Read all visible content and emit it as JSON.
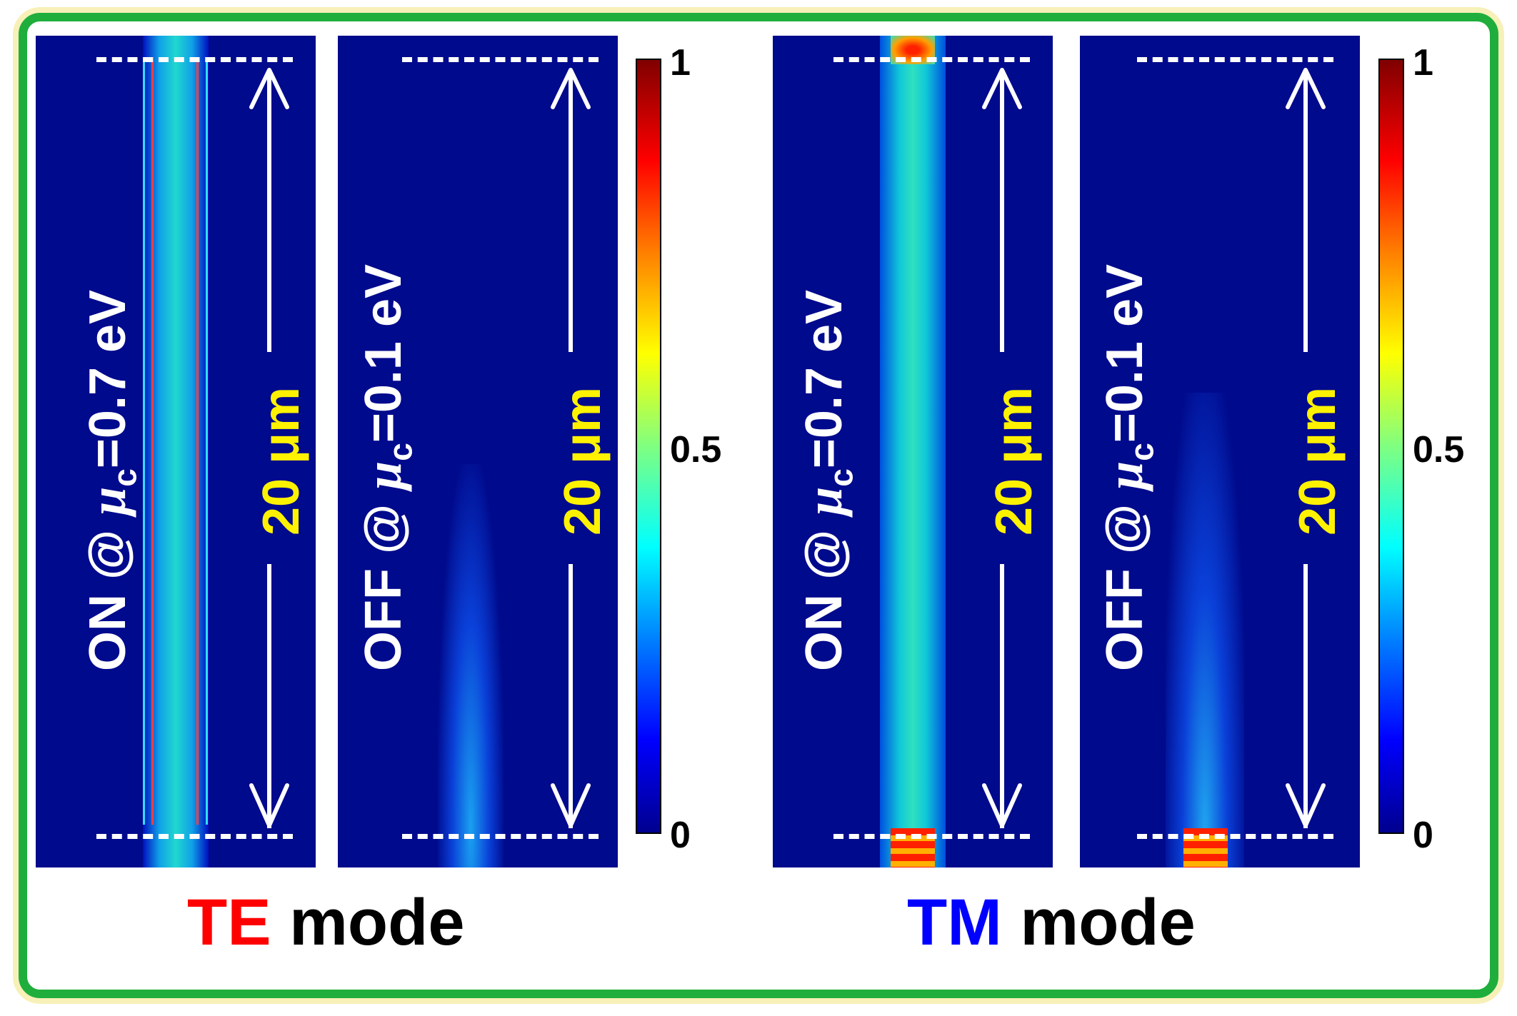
{
  "panels": [
    {
      "mode": "TE",
      "state": "ON",
      "label_prefix": "ON @ ",
      "mu": "μ",
      "mu_sub": "c",
      "label_suffix": "=0.7 eV",
      "length": "20 μm"
    },
    {
      "mode": "TE",
      "state": "OFF",
      "label_prefix": "OFF @ ",
      "mu": "μ",
      "mu_sub": "c",
      "label_suffix": "=0.1 eV",
      "length": "20 μm"
    },
    {
      "mode": "TM",
      "state": "ON",
      "label_prefix": "ON @ ",
      "mu": "μ",
      "mu_sub": "c",
      "label_suffix": "=0.7 eV",
      "length": "20 μm"
    },
    {
      "mode": "TM",
      "state": "OFF",
      "label_prefix": "OFF @ ",
      "mu": "μ",
      "mu_sub": "c",
      "label_suffix": "=0.1 eV",
      "length": "20 μm"
    }
  ],
  "colorbar": {
    "max": "1",
    "mid": "0.5",
    "min": "0"
  },
  "modes": [
    {
      "name": "TE",
      "word": " mode",
      "color": "#ff0000"
    },
    {
      "name": "TM",
      "word": " mode",
      "color": "#0000ff"
    }
  ],
  "colors": {
    "background": "#000a8c",
    "frame": "#1fae3c",
    "length_text": "#fff200"
  }
}
